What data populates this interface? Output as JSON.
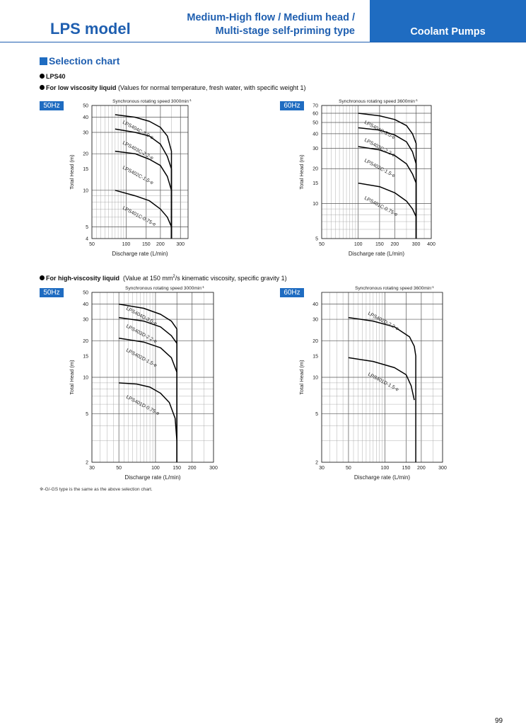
{
  "header": {
    "model_title": "LPS model",
    "subtitle_line1": "Medium-High flow / Medium head /",
    "subtitle_line2": "Multi-stage self-priming type",
    "category": "Coolant Pumps"
  },
  "section_title": "Selection chart",
  "model_name": "LPS40",
  "low_viscosity": {
    "label": "For low viscosity liquid",
    "note": "(Values for normal temperature, fresh water, with specific weight 1)"
  },
  "high_viscosity": {
    "label": "For high-viscosity liquid",
    "note_prefix": "(Value at 150 mm",
    "note_sup": "2",
    "note_suffix": "/s kinematic viscosity, specific gravity 1)"
  },
  "footnote": "※-G/-GS type is the same as the above selection chart.",
  "page_number": "99",
  "colors": {
    "brand_blue": "#1f6cc1",
    "title_blue": "#1f5fb0"
  },
  "chart_data": [
    {
      "type": "line",
      "freq_tag": "50Hz",
      "speed_note": "Synchronous rotating speed 3000min",
      "speed_sup": "-1",
      "xlabel": "Discharge rate (L/min)",
      "ylabel": "Total Head (m)",
      "x_scale": "log",
      "y_scale": "log",
      "grid": true,
      "xlim": [
        50,
        350
      ],
      "ylim": [
        4,
        50
      ],
      "x_ticks": [
        50,
        100,
        150,
        200,
        300
      ],
      "y_ticks": [
        4,
        5,
        10,
        15,
        20,
        30,
        40,
        50
      ],
      "series": [
        {
          "name": "LPS404C-3.0-e",
          "x": [
            80,
            120,
            160,
            200,
            230,
            250,
            250
          ],
          "y": [
            42,
            40,
            37,
            33,
            28,
            21,
            4
          ]
        },
        {
          "name": "LPS403C-2.2-e",
          "x": [
            80,
            120,
            160,
            200,
            230,
            250,
            250
          ],
          "y": [
            32,
            30,
            28,
            24,
            19,
            15,
            4
          ]
        },
        {
          "name": "LPS402C-1.5-e",
          "x": [
            80,
            120,
            160,
            200,
            230,
            250,
            250
          ],
          "y": [
            21,
            20,
            18,
            16,
            13,
            10,
            4
          ]
        },
        {
          "name": "LPS401C-0.75-e",
          "x": [
            80,
            120,
            160,
            200,
            230,
            250,
            250
          ],
          "y": [
            10,
            9,
            8.2,
            7,
            6,
            5,
            4
          ]
        }
      ]
    },
    {
      "type": "line",
      "freq_tag": "60Hz",
      "speed_note": "Synchronous rotating speed 3600min",
      "speed_sup": "-1",
      "xlabel": "Discharge rate (L/min)",
      "ylabel": "Total Head (m)",
      "x_scale": "log",
      "y_scale": "log",
      "grid": true,
      "xlim": [
        50,
        400
      ],
      "ylim": [
        5,
        70
      ],
      "x_ticks": [
        50,
        100,
        150,
        200,
        300,
        400
      ],
      "y_ticks": [
        5,
        10,
        15,
        20,
        30,
        40,
        50,
        60,
        70
      ],
      "series": [
        {
          "name": "LPS404C-3.0-e",
          "x": [
            100,
            150,
            200,
            250,
            280,
            300,
            300
          ],
          "y": [
            60,
            57,
            53,
            47,
            40,
            33,
            5
          ]
        },
        {
          "name": "LPS403C-2.2-e",
          "x": [
            100,
            150,
            200,
            250,
            280,
            300,
            300
          ],
          "y": [
            45,
            43,
            39,
            34,
            28,
            22,
            5
          ]
        },
        {
          "name": "LPS402C-1.5-e",
          "x": [
            100,
            150,
            200,
            250,
            280,
            300,
            300
          ],
          "y": [
            31,
            29,
            26,
            22,
            18,
            15,
            5
          ]
        },
        {
          "name": "LPS401C-0.75-e",
          "x": [
            100,
            150,
            200,
            250,
            280,
            300,
            300
          ],
          "y": [
            15,
            14,
            12.4,
            10.5,
            9,
            7.7,
            5
          ]
        }
      ]
    },
    {
      "type": "line",
      "freq_tag": "50Hz",
      "speed_note": "Synchronous rotating speed 3000min",
      "speed_sup": "-1",
      "xlabel": "Discharge rate (L/min)",
      "ylabel": "Total Head (m)",
      "x_scale": "log",
      "y_scale": "log",
      "grid": true,
      "xlim": [
        30,
        300
      ],
      "ylim": [
        2,
        50
      ],
      "x_ticks": [
        30,
        50,
        100,
        150,
        200,
        300
      ],
      "y_ticks": [
        2,
        5,
        10,
        15,
        20,
        30,
        40,
        50
      ],
      "series": [
        {
          "name": "LPS404D-3.0-e",
          "x": [
            50,
            80,
            110,
            135,
            150,
            150
          ],
          "y": [
            40,
            37,
            33,
            29,
            25,
            2
          ]
        },
        {
          "name": "LPS403D-2.2-e",
          "x": [
            50,
            80,
            110,
            135,
            150,
            150
          ],
          "y": [
            31,
            29,
            26,
            22,
            19,
            2
          ]
        },
        {
          "name": "LPS402D-1.5-e",
          "x": [
            50,
            80,
            110,
            135,
            150,
            150
          ],
          "y": [
            21,
            19.5,
            17.5,
            14.5,
            11,
            2
          ]
        },
        {
          "name": "LPS401D-0.75-e",
          "x": [
            50,
            70,
            90,
            110,
            130,
            145,
            150,
            150
          ],
          "y": [
            9,
            8.8,
            8.3,
            7.4,
            6.2,
            4.6,
            3,
            2
          ]
        }
      ]
    },
    {
      "type": "line",
      "freq_tag": "60Hz",
      "speed_note": "Synchronous rotating speed 3600min",
      "speed_sup": "-1",
      "xlabel": "Discharge rate (L/min)",
      "ylabel": "Total Head (m)",
      "x_scale": "log",
      "y_scale": "log",
      "grid": true,
      "xlim": [
        30,
        300
      ],
      "ylim": [
        2,
        50
      ],
      "x_ticks": [
        30,
        50,
        100,
        150,
        200,
        300
      ],
      "y_ticks": [
        2,
        5,
        10,
        15,
        20,
        30,
        40
      ],
      "series": [
        {
          "name": "LPS402D-2.2-e",
          "x": [
            50,
            80,
            120,
            160,
            175,
            180,
            180
          ],
          "y": [
            31,
            29,
            26,
            21.5,
            18,
            15,
            2
          ]
        },
        {
          "name": "LPS401D-1.5-e",
          "x": [
            50,
            80,
            120,
            150,
            165,
            175
          ],
          "y": [
            14.5,
            13.5,
            12,
            10.5,
            8.5,
            6.5
          ]
        }
      ]
    }
  ]
}
